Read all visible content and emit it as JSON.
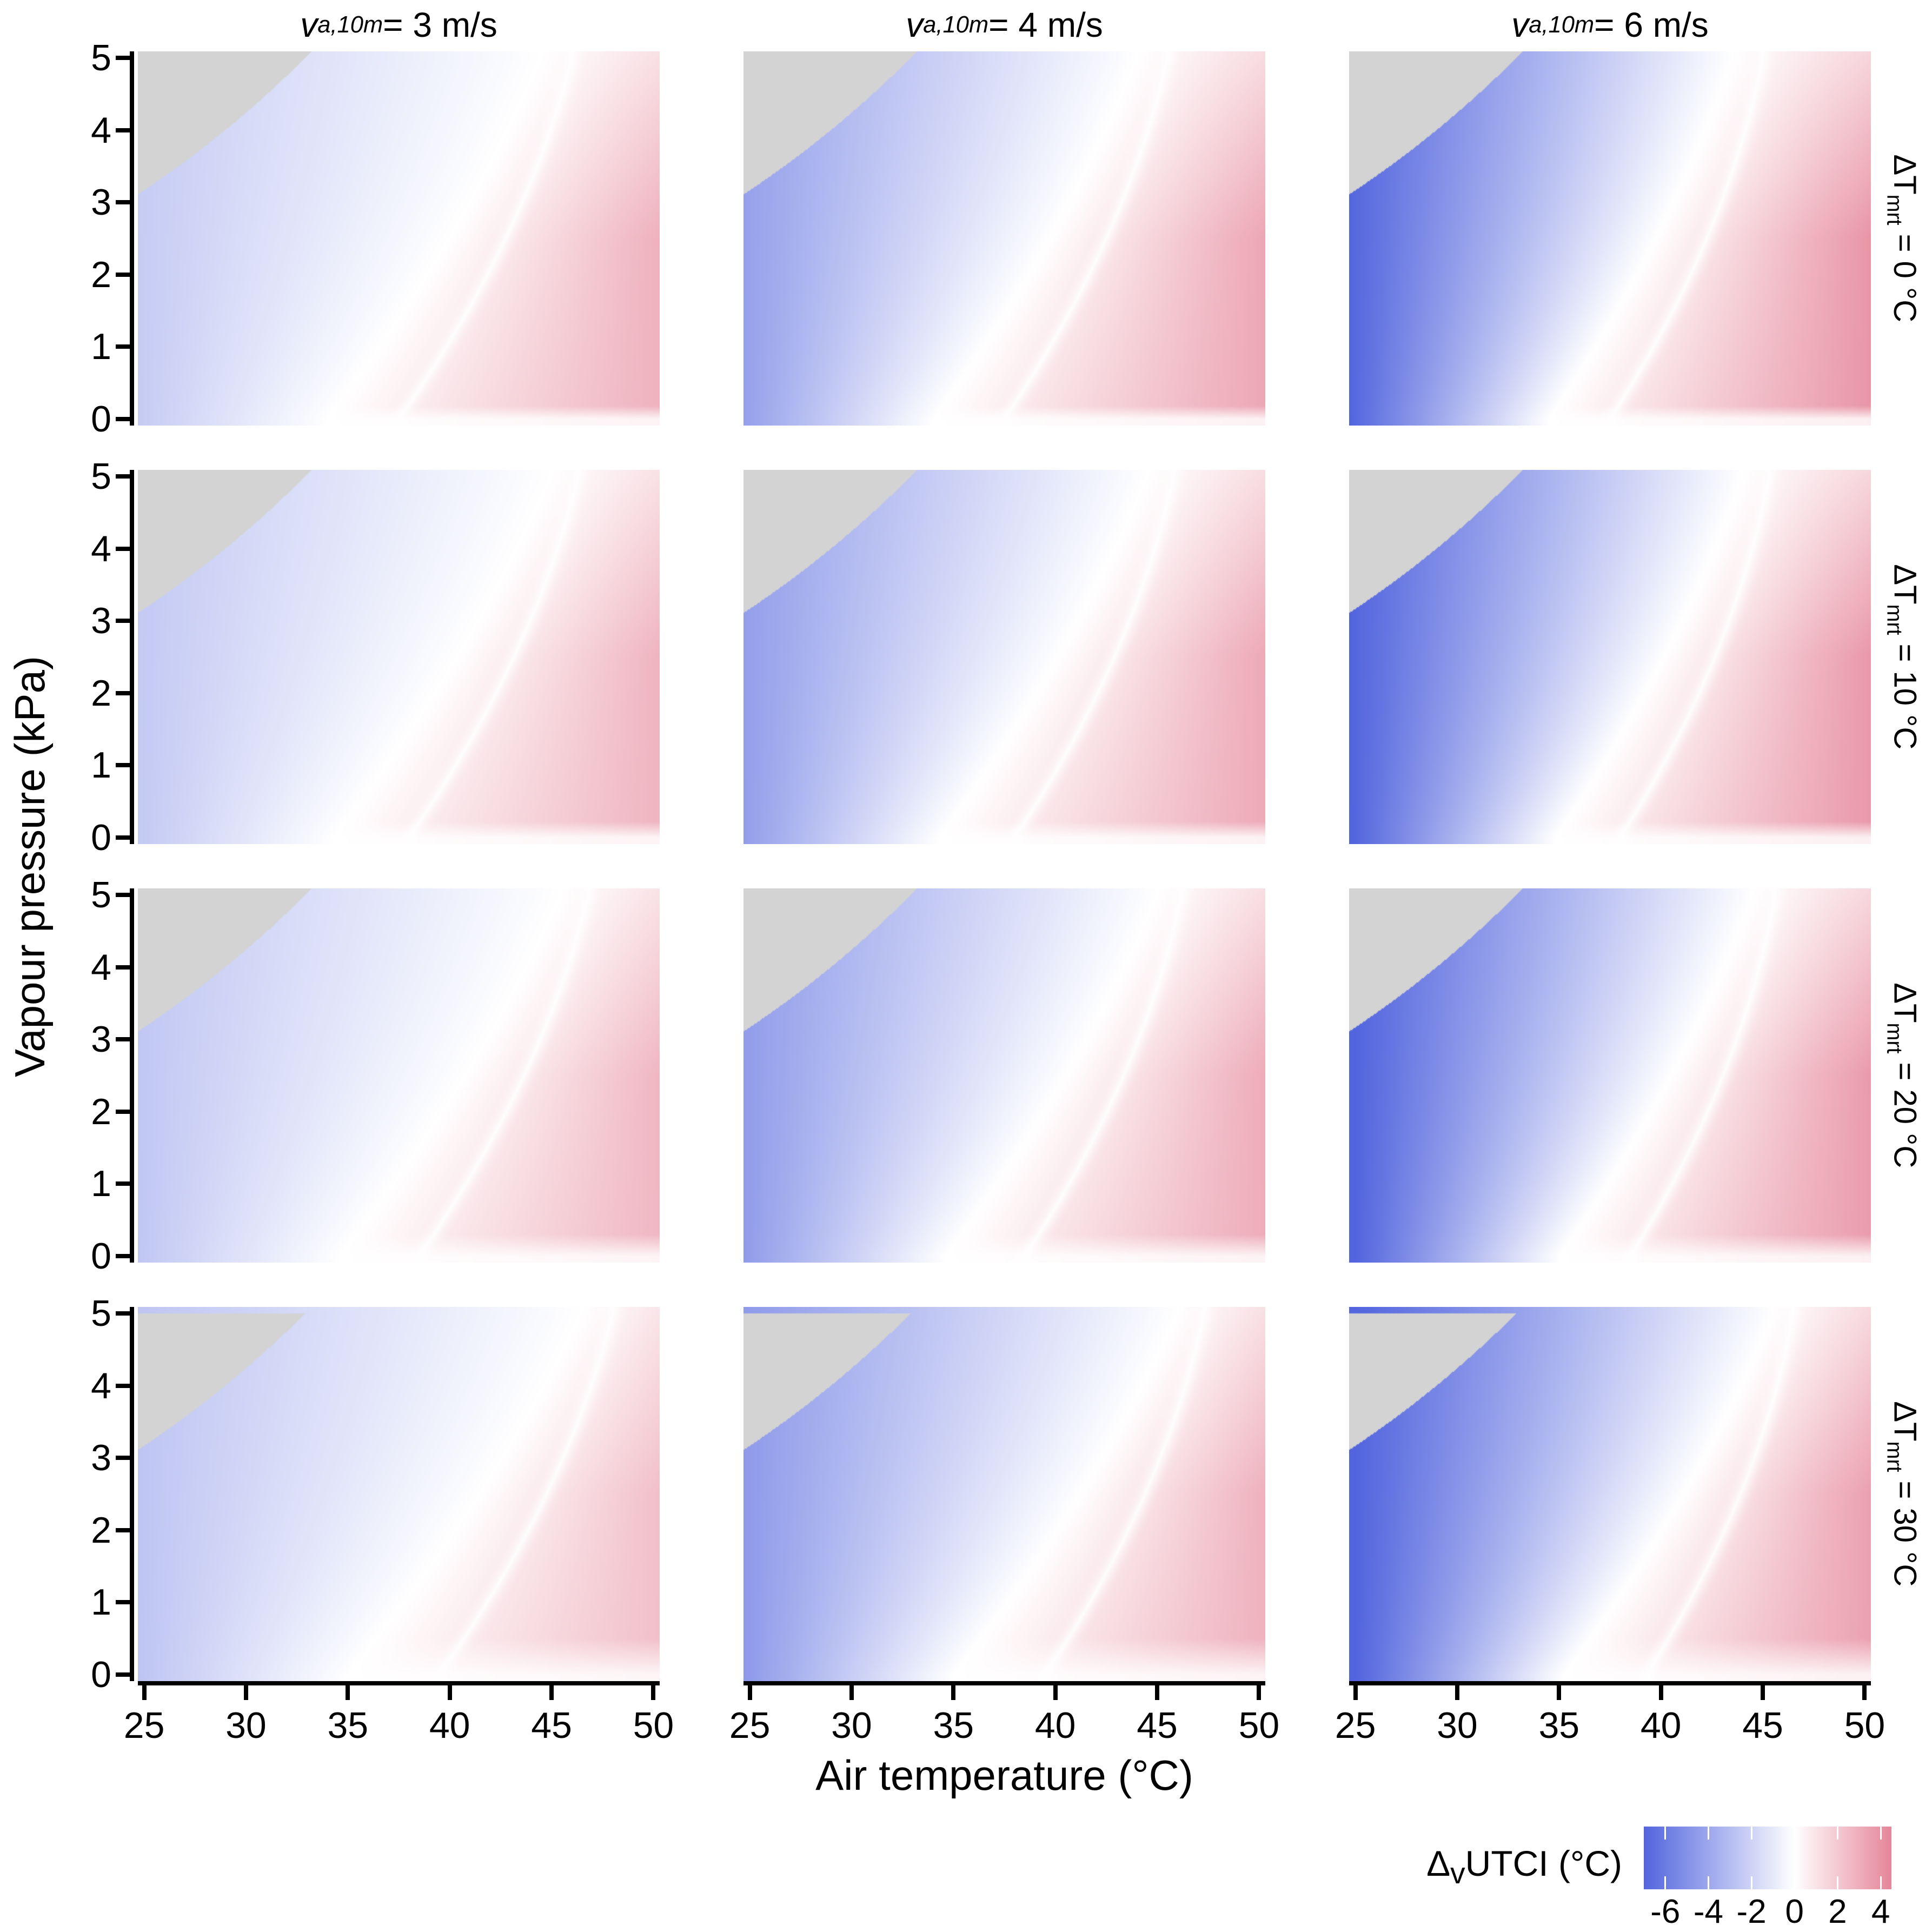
{
  "figure_background": "#ffffff",
  "axes": {
    "x": {
      "title": "Air temperature (°C)",
      "range": [
        25,
        50
      ],
      "ticks": [
        25,
        30,
        35,
        40,
        45,
        50
      ]
    },
    "y": {
      "title": "Vapour pressure (kPa)",
      "range": [
        0,
        5
      ],
      "ticks": [
        0,
        1,
        2,
        3,
        4,
        5
      ]
    }
  },
  "columns": [
    {
      "var": "v",
      "sub": "a,10m",
      "value": " = 3 m/s",
      "wind_speed_m_s": 3
    },
    {
      "var": "v",
      "sub": "a,10m",
      "value": " = 4 m/s",
      "wind_speed_m_s": 4
    },
    {
      "var": "v",
      "sub": "a,10m",
      "value": " = 6 m/s",
      "wind_speed_m_s": 6
    }
  ],
  "rows": [
    {
      "var": "ΔT",
      "sub": "mrt",
      "value": " = 0 °C",
      "delta_tmrt_c": 0
    },
    {
      "var": "ΔT",
      "sub": "mrt",
      "value": " = 10 °C",
      "delta_tmrt_c": 10
    },
    {
      "var": "ΔT",
      "sub": "mrt",
      "value": " = 20 °C",
      "delta_tmrt_c": 20
    },
    {
      "var": "ΔT",
      "sub": "mrt",
      "value": " = 30 °C",
      "delta_tmrt_c": 30
    }
  ],
  "legend": {
    "label_var": "Δ",
    "label_sub": "v",
    "label_rest": "UTCI (°C)",
    "ticks": [
      -6,
      -4,
      -2,
      0,
      2,
      4
    ],
    "domain": [
      -7,
      4.5
    ],
    "colors": {
      "negative_end": "#5265DE",
      "zero": "#FFFFFF",
      "positive_end": "#E58599",
      "invalid_region_gray": "#D3D3D3"
    }
  },
  "chart_data": {
    "type": "heatmap",
    "description": "Faceted diverging heatmaps of ΔvUTCI (°C) over air temperature (25–50 °C, x) and vapour pressure (0–5 kPa, y). Columns: wind speed va,10m = 3, 4, 6 m/s. Rows: ΔTmrt = 0, 10, 20, 30 °C. Blue = negative ΔvUTCI, white = 0, pink/red = positive. Gray upper-left region is invalid (supersaturated): vapour pressure above saturation curve P_sat(T) = 0.6108·exp(17.27·T/(T+237.3)) kPa, which passes through (25 °C, 3.17 kPa) and reaches 5 kPa near 33 °C.",
    "x": {
      "label": "Air temperature (°C)",
      "min": 25,
      "max": 50
    },
    "y": {
      "label": "Vapour pressure (kPa)",
      "min": 0,
      "max": 5
    },
    "value": {
      "label": "ΔvUTCI (°C)",
      "min": -7,
      "max": 4.5,
      "zero_color": "white"
    },
    "invalid_region": "P > 0.6108*exp(17.27*T/(T+237.3))",
    "panels": [
      {
        "row": 0,
        "col": 0,
        "wind_m_s": 3,
        "dTmrt_c": 0,
        "zero_ta_p0": 34.0,
        "zero_ta_p5": 44.5,
        "ridge_ta_p0": 37.5,
        "ridge_ta_p5": 46.0,
        "min_dutci": -2.3,
        "max_dutci": 2.8,
        "bottom_fade_kpa": 0.18,
        "gray_cap_kpa": 99
      },
      {
        "row": 0,
        "col": 1,
        "wind_m_s": 4,
        "dTmrt_c": 0,
        "zero_ta_p0": 34.0,
        "zero_ta_p5": 44.0,
        "ridge_ta_p0": 37.5,
        "ridge_ta_p5": 45.5,
        "min_dutci": -4.2,
        "max_dutci": 3.2,
        "bottom_fade_kpa": 0.18,
        "gray_cap_kpa": 99
      },
      {
        "row": 0,
        "col": 2,
        "wind_m_s": 6,
        "dTmrt_c": 0,
        "zero_ta_p0": 34.5,
        "zero_ta_p5": 43.5,
        "ridge_ta_p0": 37.5,
        "ridge_ta_p5": 45.0,
        "min_dutci": -6.8,
        "max_dutci": 3.8,
        "bottom_fade_kpa": 0.18,
        "gray_cap_kpa": 99
      },
      {
        "row": 1,
        "col": 0,
        "wind_m_s": 3,
        "dTmrt_c": 10,
        "zero_ta_p0": 34.3,
        "zero_ta_p5": 45.0,
        "ridge_ta_p0": 38.0,
        "ridge_ta_p5": 46.3,
        "min_dutci": -2.4,
        "max_dutci": 2.7,
        "bottom_fade_kpa": 0.22,
        "gray_cap_kpa": 99
      },
      {
        "row": 1,
        "col": 1,
        "wind_m_s": 4,
        "dTmrt_c": 10,
        "zero_ta_p0": 34.3,
        "zero_ta_p5": 44.5,
        "ridge_ta_p0": 38.0,
        "ridge_ta_p5": 45.8,
        "min_dutci": -4.3,
        "max_dutci": 3.1,
        "bottom_fade_kpa": 0.22,
        "gray_cap_kpa": 99
      },
      {
        "row": 1,
        "col": 2,
        "wind_m_s": 6,
        "dTmrt_c": 10,
        "zero_ta_p0": 34.8,
        "zero_ta_p5": 44.0,
        "ridge_ta_p0": 38.0,
        "ridge_ta_p5": 45.3,
        "min_dutci": -6.9,
        "max_dutci": 3.7,
        "bottom_fade_kpa": 0.22,
        "gray_cap_kpa": 99
      },
      {
        "row": 2,
        "col": 0,
        "wind_m_s": 3,
        "dTmrt_c": 20,
        "zero_ta_p0": 34.6,
        "zero_ta_p5": 45.5,
        "ridge_ta_p0": 38.5,
        "ridge_ta_p5": 46.8,
        "min_dutci": -2.5,
        "max_dutci": 2.6,
        "bottom_fade_kpa": 0.3,
        "gray_cap_kpa": 99
      },
      {
        "row": 2,
        "col": 1,
        "wind_m_s": 4,
        "dTmrt_c": 20,
        "zero_ta_p0": 34.6,
        "zero_ta_p5": 45.0,
        "ridge_ta_p0": 38.5,
        "ridge_ta_p5": 46.2,
        "min_dutci": -4.4,
        "max_dutci": 3.0,
        "bottom_fade_kpa": 0.3,
        "gray_cap_kpa": 99
      },
      {
        "row": 2,
        "col": 2,
        "wind_m_s": 6,
        "dTmrt_c": 20,
        "zero_ta_p0": 35.0,
        "zero_ta_p5": 44.5,
        "ridge_ta_p0": 38.5,
        "ridge_ta_p5": 45.6,
        "min_dutci": -7.0,
        "max_dutci": 3.6,
        "bottom_fade_kpa": 0.3,
        "gray_cap_kpa": 99
      },
      {
        "row": 3,
        "col": 0,
        "wind_m_s": 3,
        "dTmrt_c": 30,
        "zero_ta_p0": 35.0,
        "zero_ta_p5": 46.5,
        "ridge_ta_p0": 39.5,
        "ridge_ta_p5": 48.0,
        "min_dutci": -2.6,
        "max_dutci": 2.3,
        "bottom_fade_kpa": 0.5,
        "gray_cap_kpa": 5.0
      },
      {
        "row": 3,
        "col": 1,
        "wind_m_s": 4,
        "dTmrt_c": 30,
        "zero_ta_p0": 35.0,
        "zero_ta_p5": 46.0,
        "ridge_ta_p0": 39.5,
        "ridge_ta_p5": 47.3,
        "min_dutci": -4.5,
        "max_dutci": 2.8,
        "bottom_fade_kpa": 0.5,
        "gray_cap_kpa": 5.0
      },
      {
        "row": 3,
        "col": 2,
        "wind_m_s": 6,
        "dTmrt_c": 30,
        "zero_ta_p0": 35.2,
        "zero_ta_p5": 45.5,
        "ridge_ta_p0": 39.3,
        "ridge_ta_p5": 46.5,
        "min_dutci": -7.0,
        "max_dutci": 3.4,
        "bottom_fade_kpa": 0.5,
        "gray_cap_kpa": 5.0
      }
    ],
    "legend_position": "bottom-right",
    "grid": "off"
  }
}
